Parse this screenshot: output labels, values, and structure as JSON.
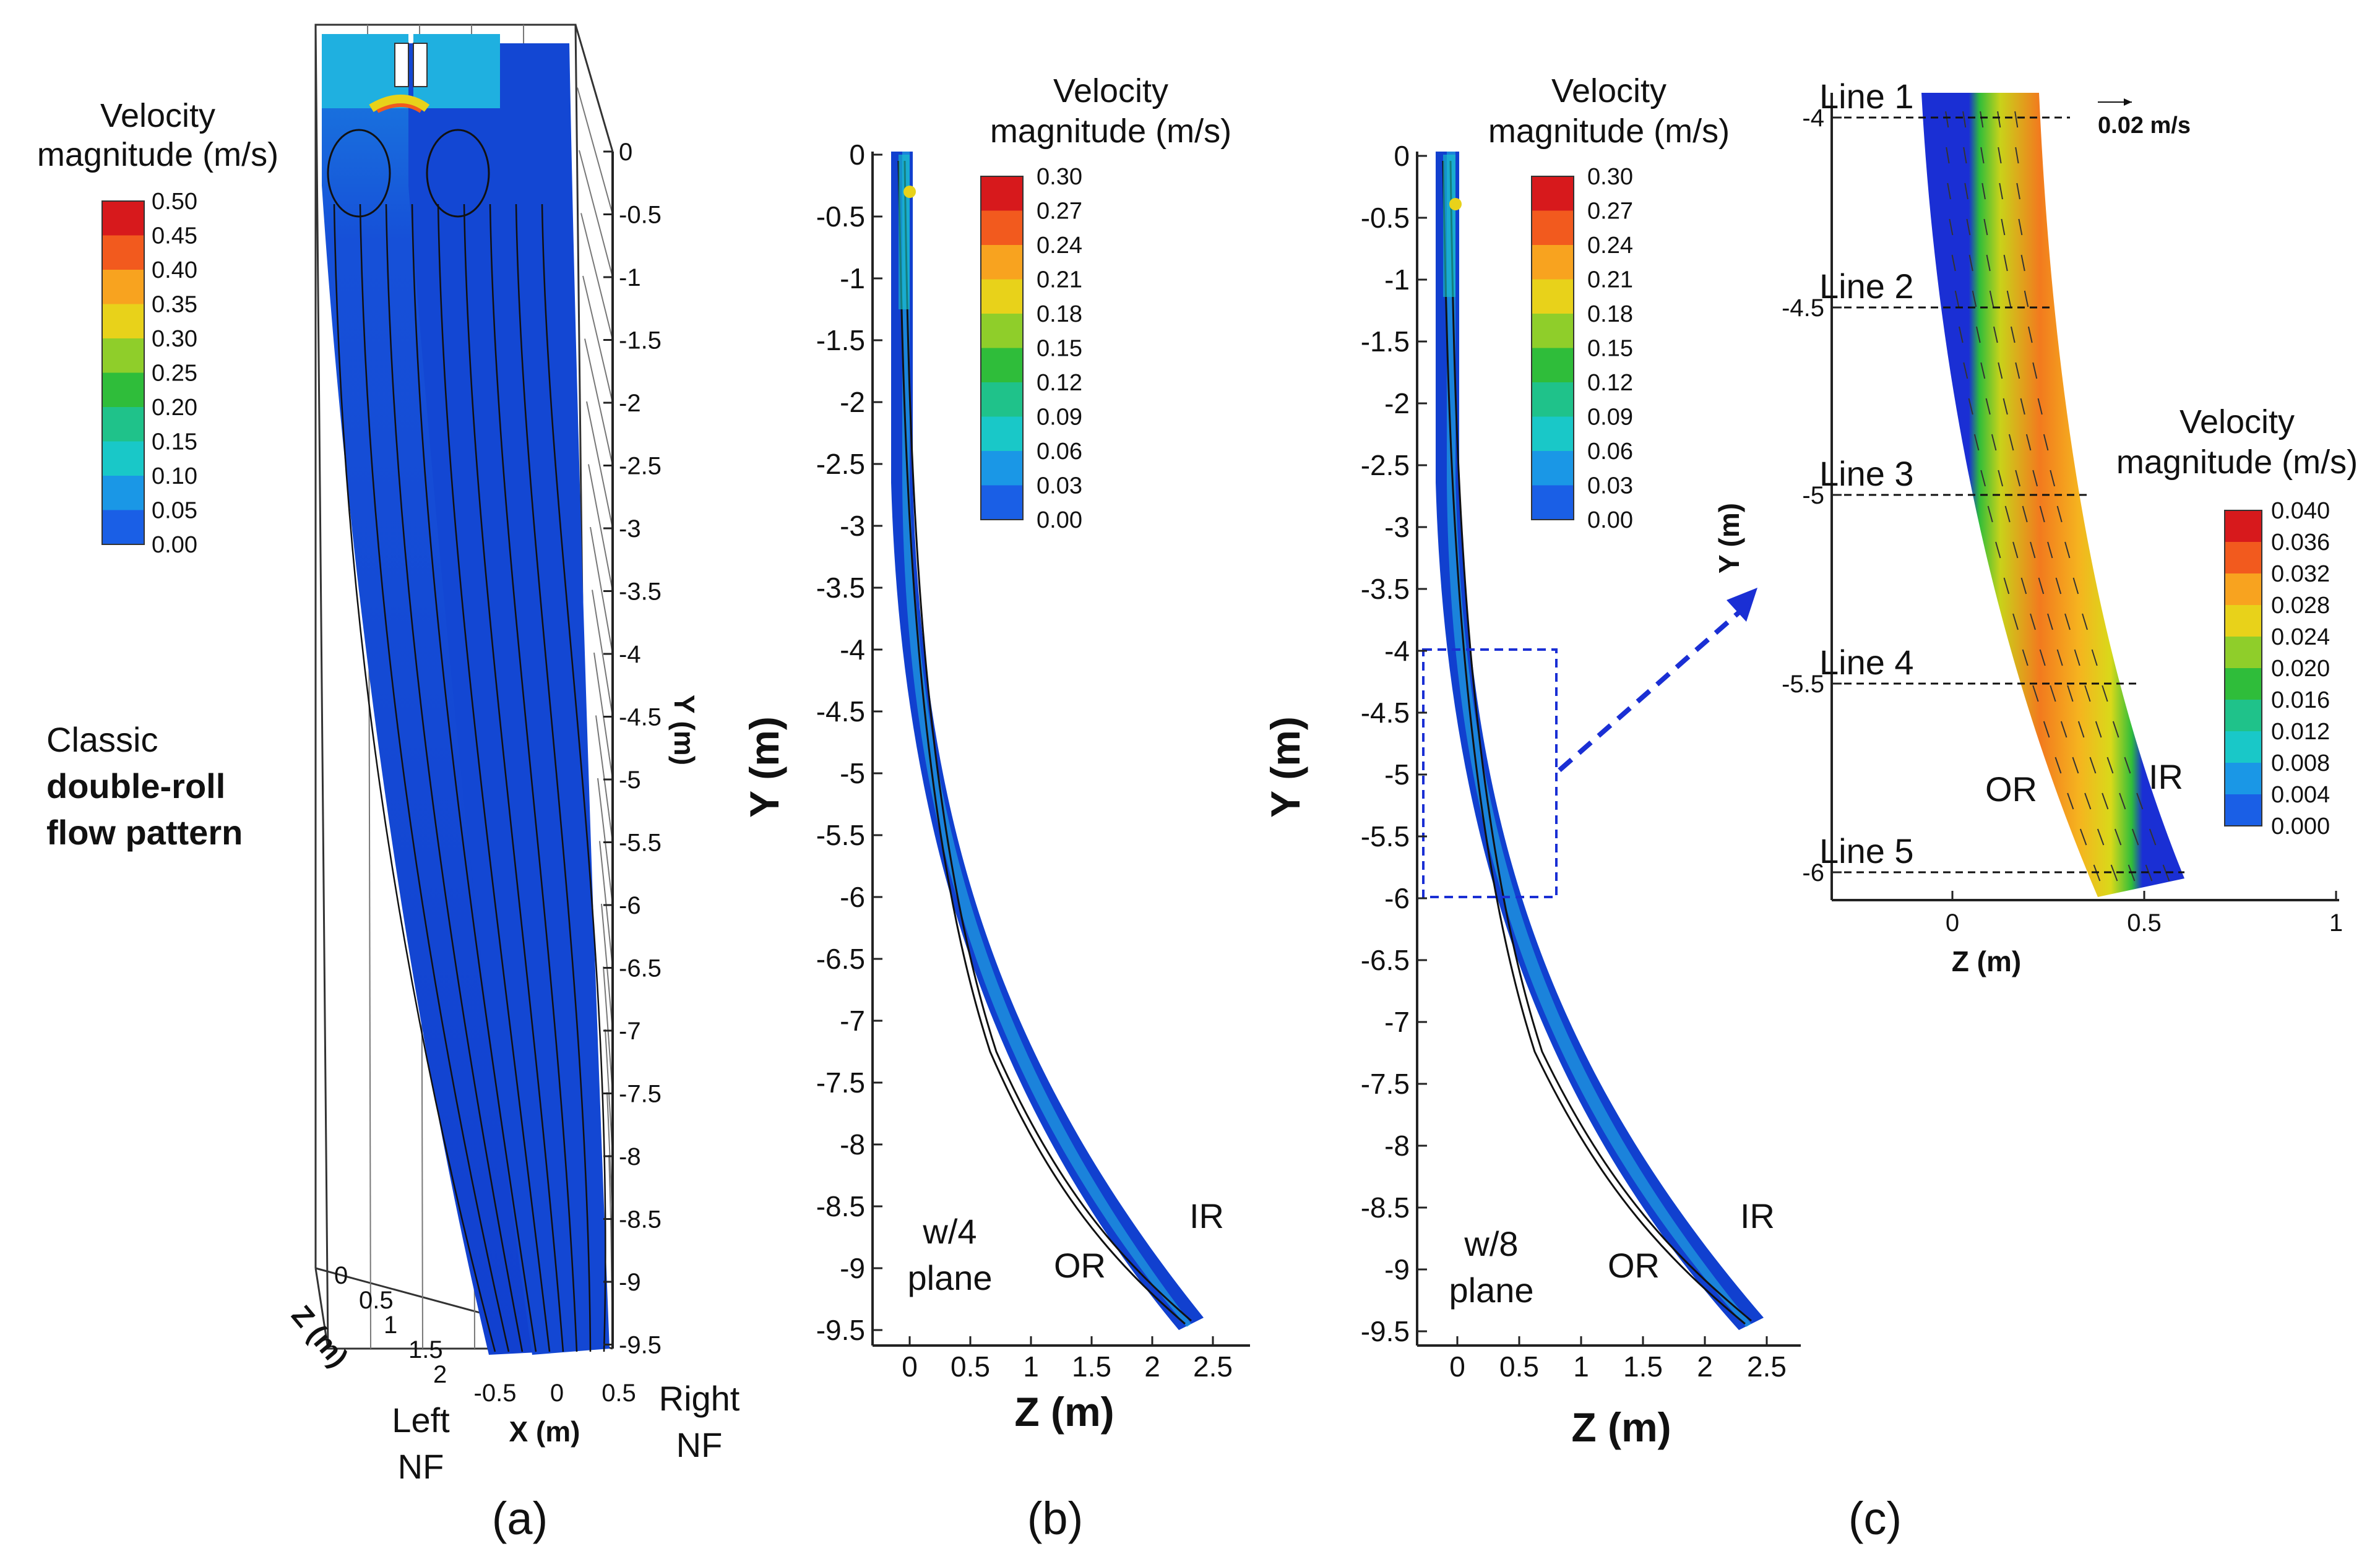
{
  "panel_a": {
    "legend_title_1": "Velocity",
    "legend_title_2": "magnitude (m/s)",
    "legend_levels": [
      "0.50",
      "0.45",
      "0.40",
      "0.35",
      "0.30",
      "0.25",
      "0.20",
      "0.15",
      "0.10",
      "0.05",
      "0.00"
    ],
    "legend_colors": [
      "#d7191c",
      "#f25a1e",
      "#f8a31f",
      "#e8d21a",
      "#8fce2a",
      "#2fbd3a",
      "#1fc28a",
      "#19c8c8",
      "#1a97e6",
      "#1a5fe6",
      "#1a2fd4"
    ],
    "y_ticks": [
      "0",
      "-0.5",
      "-1",
      "-1.5",
      "-2",
      "-2.5",
      "-3",
      "-3.5",
      "-4",
      "-4.5",
      "-5",
      "-5.5",
      "-6",
      "-6.5",
      "-7",
      "-7.5",
      "-8",
      "-8.5",
      "-9",
      "-9.5"
    ],
    "y_axis_label": "Y (m)",
    "z_ticks": [
      "0",
      "0.5",
      "1",
      "1.5",
      "2"
    ],
    "z_axis_label": "Z (m)",
    "x_ticks": [
      "-0.5",
      "0",
      "0.5"
    ],
    "x_axis_label": "X (m)",
    "annotation_line1": "Classic",
    "annotation_line2": "double-roll",
    "annotation_line3": "flow pattern",
    "left_label_1": "Left",
    "left_label_2": "NF",
    "right_label_1": "Right",
    "right_label_2": "NF",
    "caption": "(a)"
  },
  "panel_b": {
    "legend_title_1": "Velocity",
    "legend_title_2": "magnitude (m/s)",
    "legend_levels": [
      "0.30",
      "0.27",
      "0.24",
      "0.21",
      "0.18",
      "0.15",
      "0.12",
      "0.09",
      "0.06",
      "0.03",
      "0.00"
    ],
    "y_ticks": [
      "0",
      "-0.5",
      "-1",
      "-1.5",
      "-2",
      "-2.5",
      "-3",
      "-3.5",
      "-4",
      "-4.5",
      "-5",
      "-5.5",
      "-6",
      "-6.5",
      "-7",
      "-7.5",
      "-8",
      "-8.5",
      "-9",
      "-9.5"
    ],
    "y_axis_label": "Y (m)",
    "z_ticks": [
      "0",
      "0.5",
      "1",
      "1.5",
      "2",
      "2.5"
    ],
    "z_axis_label": "Z (m)",
    "plane_label_1": "w/4",
    "plane_label_2": "plane",
    "or_label": "OR",
    "ir_label": "IR",
    "caption": "(b)"
  },
  "panel_c_main": {
    "legend_title_1": "Velocity",
    "legend_title_2": "magnitude (m/s)",
    "legend_levels": [
      "0.30",
      "0.27",
      "0.24",
      "0.21",
      "0.18",
      "0.15",
      "0.12",
      "0.09",
      "0.06",
      "0.03",
      "0.00"
    ],
    "y_ticks": [
      "0",
      "-0.5",
      "-1",
      "-1.5",
      "-2",
      "-2.5",
      "-3",
      "-3.5",
      "-4",
      "-4.5",
      "-5",
      "-5.5",
      "-6",
      "-6.5",
      "-7",
      "-7.5",
      "-8",
      "-8.5",
      "-9",
      "-9.5"
    ],
    "y_axis_label": "Y (m)",
    "z_ticks": [
      "0",
      "0.5",
      "1",
      "1.5",
      "2",
      "2.5"
    ],
    "z_axis_label": "Z (m)",
    "plane_label_1": "w/8",
    "plane_label_2": "plane",
    "or_label": "OR",
    "ir_label": "IR",
    "caption": "(c)"
  },
  "panel_c_zoom": {
    "legend_title_1": "Velocity",
    "legend_title_2": "magnitude (m/s)",
    "legend_levels": [
      "0.040",
      "0.036",
      "0.032",
      "0.028",
      "0.024",
      "0.020",
      "0.016",
      "0.012",
      "0.008",
      "0.004",
      "0.000"
    ],
    "y_ticks": [
      "-4",
      "-4.5",
      "-5",
      "-5.5",
      "-6"
    ],
    "y_axis_label": "Y (m)",
    "z_ticks": [
      "0",
      "0.5",
      "1"
    ],
    "z_axis_label": "Z (m)",
    "lines": [
      "Line 1",
      "Line 2",
      "Line 3",
      "Line 4",
      "Line 5"
    ],
    "scale_vector": "0.02 m/s",
    "or_label": "OR",
    "ir_label": "IR"
  }
}
